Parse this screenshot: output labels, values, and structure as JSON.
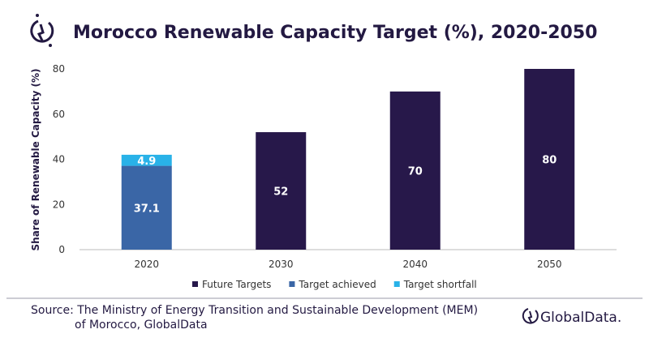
{
  "chart_data": {
    "type": "bar",
    "stacked": true,
    "title": "Morocco Renewable Capacity Target (%), 2020-2050",
    "ylabel": "Share of Renewable Capacity (%)",
    "xlabel": "",
    "ylim": [
      0,
      80
    ],
    "yticks": [
      0,
      20,
      40,
      60,
      80
    ],
    "grid": false,
    "legend_position": "bottom",
    "categories": [
      "2020",
      "2030",
      "2040",
      "2050"
    ],
    "series": [
      {
        "name": "Future Targets",
        "color": "#27184a",
        "values": [
          null,
          52,
          70,
          80
        ],
        "labels": [
          "",
          "52",
          "70",
          "80"
        ]
      },
      {
        "name": "Target achieved",
        "color": "#3a66a6",
        "values": [
          37.1,
          null,
          null,
          null
        ],
        "labels": [
          "37.1",
          "",
          "",
          ""
        ]
      },
      {
        "name": "Target shortfall",
        "color": "#29b2e8",
        "values": [
          4.9,
          null,
          null,
          null
        ],
        "labels": [
          "4.9",
          "",
          "",
          ""
        ]
      }
    ]
  },
  "source": {
    "line1": "Source: The Ministry of Energy Transition and Sustainable Development (MEM)",
    "line2": "of Morocco, GlobalData"
  },
  "brand": {
    "name": "GlobalData.",
    "logo_icon": "globaldata-logo-icon",
    "color": "#231942"
  }
}
